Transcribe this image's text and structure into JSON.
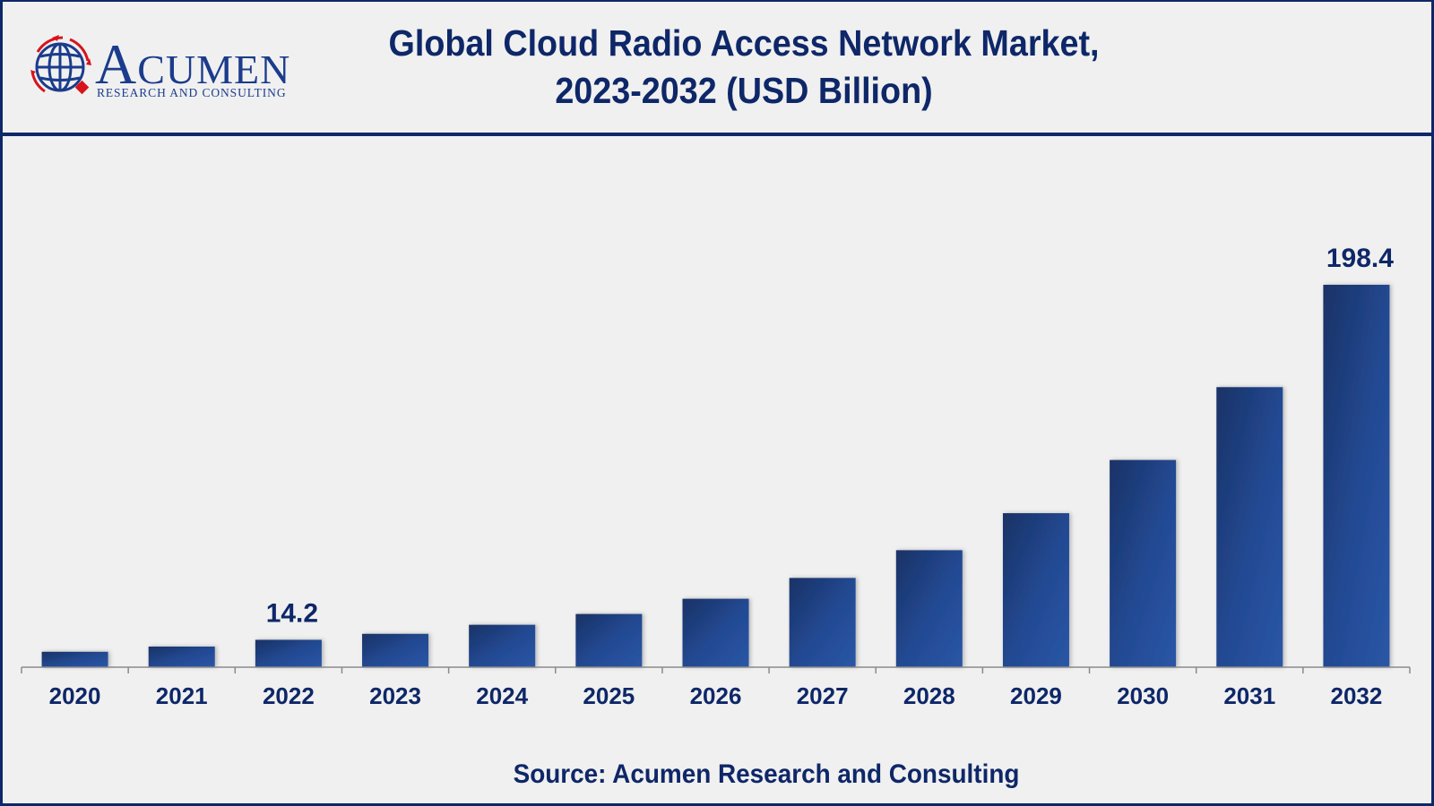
{
  "logo": {
    "name_initial": "A",
    "name_rest": "CUMEN",
    "tagline": "RESEARCH AND CONSULTING"
  },
  "title": {
    "line1": "Global Cloud Radio Access Network Market,",
    "line2": "2023-2032 (USD Billion)"
  },
  "source": "Source: Acumen Research and Consulting",
  "colors": {
    "navy": "#0e2768",
    "bar_dark": "#1a3266",
    "bar_light": "#2a56a6",
    "logo_red": "#d7141c",
    "background": "#f0f0f0",
    "axis": "#8a8a8a"
  },
  "chart_data": {
    "type": "bar",
    "title": "Global Cloud Radio Access Network Market, 2023-2032 (USD Billion)",
    "xlabel": "",
    "ylabel": "USD Billion",
    "categories": [
      "2020",
      "2021",
      "2022",
      "2023",
      "2024",
      "2025",
      "2026",
      "2027",
      "2028",
      "2029",
      "2030",
      "2031",
      "2032"
    ],
    "values": [
      8.0,
      10.7,
      14.2,
      17.3,
      22.0,
      27.6,
      35.5,
      46.3,
      60.7,
      79.9,
      107.5,
      145.3,
      198.4
    ],
    "data_labels": [
      {
        "category": "2022",
        "text": "14.2"
      },
      {
        "category": "2032",
        "text": "198.4"
      }
    ],
    "ylim": [
      0,
      198.4
    ],
    "grid": false,
    "legend": "none",
    "y_axis_visible": false
  }
}
